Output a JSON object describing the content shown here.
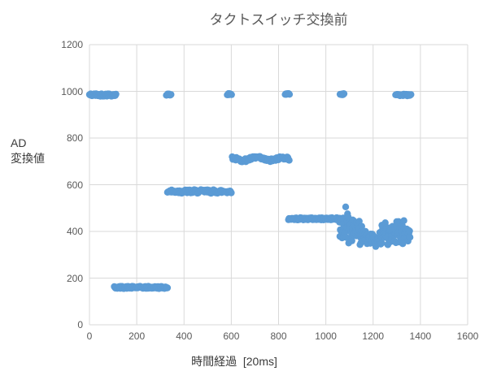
{
  "chart": {
    "title": "タクトスイッチ交換前",
    "x_axis_title": "時間経過  [20ms]",
    "y_axis_title": "AD\n変換値"
  },
  "colors": {
    "marker": "#5b9bd5",
    "gridline": "#d9d9d9",
    "title_text": "#595959",
    "axis_title_text": "#3a3a3a",
    "tick_text": "#595959",
    "background": "#ffffff"
  },
  "chart_data": {
    "type": "scatter",
    "title": "タクトスイッチ交換前",
    "xlabel": "時間経過  [20ms]",
    "ylabel": "AD\n変換値",
    "xlim": [
      0,
      1600
    ],
    "ylim": [
      0,
      1200
    ],
    "x_ticks": [
      0,
      200,
      400,
      600,
      800,
      1000,
      1200,
      1400,
      1600
    ],
    "y_ticks": [
      0,
      200,
      400,
      600,
      800,
      1000,
      1200
    ],
    "grid": true,
    "legend": false,
    "marker_color": "#5b9bd5",
    "marker_radius_px": 4.2,
    "segments": [
      {
        "label": "idle-high-1",
        "shape": "band",
        "x_start": 0,
        "x_end": 112,
        "n": 45,
        "y_center": 985,
        "y_spread": 6
      },
      {
        "label": "level-160",
        "shape": "band",
        "x_start": 105,
        "x_end": 330,
        "n": 90,
        "y_center": 160,
        "y_spread": 5
      },
      {
        "label": "idle-high-2",
        "shape": "band",
        "x_start": 325,
        "x_end": 345,
        "n": 8,
        "y_center": 986,
        "y_spread": 3
      },
      {
        "label": "level-570",
        "shape": "band",
        "x_start": 330,
        "x_end": 600,
        "n": 108,
        "y_center": 571,
        "y_spread": 8
      },
      {
        "label": "idle-high-3",
        "shape": "band",
        "x_start": 583,
        "x_end": 601,
        "n": 8,
        "y_center": 988,
        "y_spread": 3
      },
      {
        "label": "level-710",
        "shape": "band",
        "x_start": 604,
        "x_end": 845,
        "n": 97,
        "y_center": 710,
        "y_spread": 7,
        "wave": 6
      },
      {
        "label": "idle-high-4",
        "shape": "band",
        "x_start": 828,
        "x_end": 846,
        "n": 8,
        "y_center": 988,
        "y_spread": 3
      },
      {
        "label": "level-455",
        "shape": "band",
        "x_start": 842,
        "x_end": 1076,
        "n": 94,
        "y_center": 454,
        "y_spread": 5
      },
      {
        "label": "idle-high-5",
        "shape": "band",
        "x_start": 1060,
        "x_end": 1077,
        "n": 8,
        "y_center": 988,
        "y_spread": 3
      },
      {
        "label": "noise-cloud-a",
        "shape": "cloud",
        "x_start": 1058,
        "x_end": 1152,
        "n": 62,
        "y_min": 332,
        "y_max": 478
      },
      {
        "label": "noise-cloud-b",
        "shape": "cloud",
        "x_start": 1148,
        "x_end": 1238,
        "n": 55,
        "y_min": 330,
        "y_max": 405
      },
      {
        "label": "noise-cloud-c",
        "shape": "cloud",
        "x_start": 1232,
        "x_end": 1356,
        "n": 78,
        "y_min": 333,
        "y_max": 452
      },
      {
        "label": "idle-high-6",
        "shape": "band",
        "x_start": 1295,
        "x_end": 1360,
        "n": 22,
        "y_center": 984,
        "y_spread": 4
      }
    ],
    "points": [
      [
        1084,
        505
      ]
    ]
  }
}
